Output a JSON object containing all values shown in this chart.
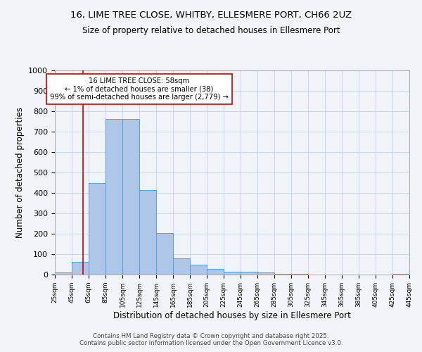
{
  "title_line1": "16, LIME TREE CLOSE, WHITBY, ELLESMERE PORT, CH66 2UZ",
  "title_line2": "Size of property relative to detached houses in Ellesmere Port",
  "xlabel": "Distribution of detached houses by size in Ellesmere Port",
  "ylabel": "Number of detached properties",
  "bar_edges": [
    25,
    45,
    65,
    85,
    105,
    125,
    145,
    165,
    185,
    205,
    225,
    245,
    265,
    285,
    305,
    325,
    345,
    365,
    385,
    405,
    425,
    445
  ],
  "bar_heights": [
    10,
    62,
    447,
    762,
    762,
    415,
    205,
    80,
    47,
    28,
    13,
    13,
    10,
    5,
    3,
    0,
    0,
    0,
    0,
    0,
    5
  ],
  "bar_color": "#aec6e8",
  "bar_edge_color": "#5b9bd5",
  "vline_x": 58,
  "vline_color": "#cc0000",
  "annotation_text": "16 LIME TREE CLOSE: 58sqm\n← 1% of detached houses are smaller (38)\n99% of semi-detached houses are larger (2,779) →",
  "annotation_box_color": "#ffffff",
  "annotation_border_color": "#cc0000",
  "ylim": [
    0,
    1000
  ],
  "yticks": [
    0,
    100,
    200,
    300,
    400,
    500,
    600,
    700,
    800,
    900,
    1000
  ],
  "xlim": [
    25,
    445
  ],
  "background_color": "#f0f4f8",
  "grid_color": "#c8d8e8",
  "footer_line1": "Contains HM Land Registry data © Crown copyright and database right 2025.",
  "footer_line2": "Contains public sector information licensed under the Open Government Licence v3.0."
}
